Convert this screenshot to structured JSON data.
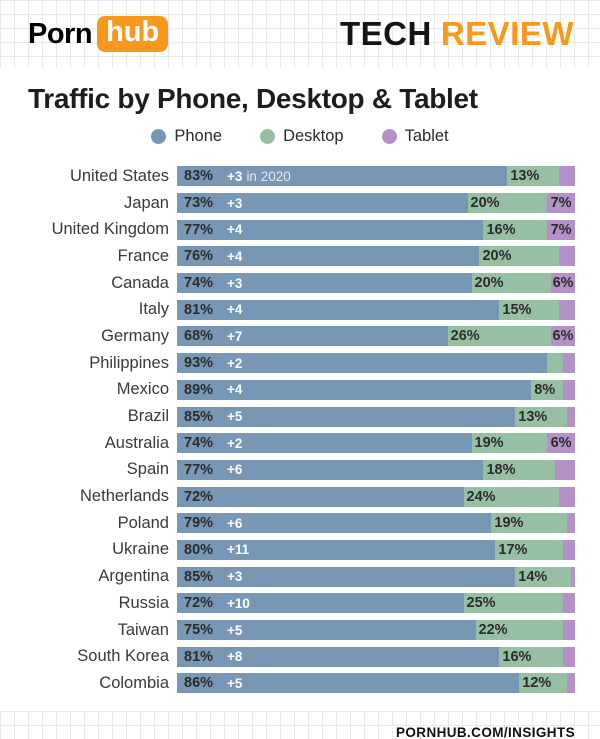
{
  "colors": {
    "phone": "#7897b5",
    "desktop": "#96bfa3",
    "tablet": "#b491c6",
    "orange": "#f8981d",
    "ink": "#1d1d1d"
  },
  "header": {
    "logo_porn": "Porn",
    "logo_hub": "hub",
    "brand_tech": "TECH",
    "brand_review": "REVIEW"
  },
  "title": "Traffic by Phone, Desktop & Tablet",
  "legend": [
    {
      "label": "Phone",
      "color": "#7897b5"
    },
    {
      "label": "Desktop",
      "color": "#96bfa3"
    },
    {
      "label": "Tablet",
      "color": "#b491c6"
    }
  ],
  "footer": {
    "text": "PORNHUB.COM/INSIGHTS"
  },
  "chart_data": {
    "type": "bar",
    "orientation": "horizontal",
    "stacked": true,
    "value_unit": "%",
    "title": "Traffic by Phone, Desktop & Tablet",
    "xlim": [
      0,
      100
    ],
    "legend_position": "top-center",
    "annotation_first_row": "+3 in 2020",
    "categories": [
      "United States",
      "Japan",
      "United Kingdom",
      "France",
      "Canada",
      "Italy",
      "Germany",
      "Philippines",
      "Mexico",
      "Brazil",
      "Australia",
      "Spain",
      "Netherlands",
      "Poland",
      "Ukraine",
      "Argentina",
      "Russia",
      "Taiwan",
      "South Korea",
      "Colombia"
    ],
    "series": [
      {
        "name": "Phone",
        "values": [
          83,
          73,
          77,
          76,
          74,
          81,
          68,
          93,
          89,
          85,
          74,
          77,
          72,
          79,
          80,
          85,
          72,
          75,
          81,
          86
        ]
      },
      {
        "name": "Desktop",
        "values": [
          13,
          20,
          16,
          20,
          20,
          15,
          26,
          4,
          8,
          13,
          19,
          18,
          24,
          19,
          17,
          14,
          25,
          22,
          16,
          12
        ]
      },
      {
        "name": "Tablet",
        "values": [
          4,
          7,
          7,
          4,
          6,
          4,
          6,
          3,
          3,
          2,
          6,
          5,
          4,
          2,
          3,
          1,
          3,
          3,
          3,
          2
        ]
      }
    ],
    "phone_change_in_2020": [
      "+3",
      "+3",
      "+4",
      "+4",
      "+3",
      "+4",
      "+7",
      "+2",
      "+4",
      "+5",
      "+2",
      "+6",
      null,
      "+6",
      "+11",
      "+3",
      "+10",
      "+5",
      "+8",
      "+5"
    ],
    "rows": [
      {
        "country": "United States",
        "phone": 83,
        "phone_label": "83%",
        "change": "+3",
        "change_suffix": "in 2020",
        "desktop": 13,
        "desktop_label": "13%",
        "tablet_label": ""
      },
      {
        "country": "Japan",
        "phone": 73,
        "phone_label": "73%",
        "change": "+3",
        "change_suffix": "",
        "desktop": 20,
        "desktop_label": "20%",
        "tablet_label": "7%"
      },
      {
        "country": "United Kingdom",
        "phone": 77,
        "phone_label": "77%",
        "change": "+4",
        "change_suffix": "",
        "desktop": 16,
        "desktop_label": "16%",
        "tablet_label": "7%"
      },
      {
        "country": "France",
        "phone": 76,
        "phone_label": "76%",
        "change": "+4",
        "change_suffix": "",
        "desktop": 20,
        "desktop_label": "20%",
        "tablet_label": ""
      },
      {
        "country": "Canada",
        "phone": 74,
        "phone_label": "74%",
        "change": "+3",
        "change_suffix": "",
        "desktop": 20,
        "desktop_label": "20%",
        "tablet_label": "6%"
      },
      {
        "country": "Italy",
        "phone": 81,
        "phone_label": "81%",
        "change": "+4",
        "change_suffix": "",
        "desktop": 15,
        "desktop_label": "15%",
        "tablet_label": ""
      },
      {
        "country": "Germany",
        "phone": 68,
        "phone_label": "68%",
        "change": "+7",
        "change_suffix": "",
        "desktop": 26,
        "desktop_label": "26%",
        "tablet_label": "6%"
      },
      {
        "country": "Philippines",
        "phone": 93,
        "phone_label": "93%",
        "change": "+2",
        "change_suffix": "",
        "desktop": 4,
        "desktop_label": "",
        "tablet_label": ""
      },
      {
        "country": "Mexico",
        "phone": 89,
        "phone_label": "89%",
        "change": "+4",
        "change_suffix": "",
        "desktop": 8,
        "desktop_label": "8%",
        "tablet_label": ""
      },
      {
        "country": "Brazil",
        "phone": 85,
        "phone_label": "85%",
        "change": "+5",
        "change_suffix": "",
        "desktop": 13,
        "desktop_label": "13%",
        "tablet_label": ""
      },
      {
        "country": "Australia",
        "phone": 74,
        "phone_label": "74%",
        "change": "+2",
        "change_suffix": "",
        "desktop": 19,
        "desktop_label": "19%",
        "tablet_label": "6%"
      },
      {
        "country": "Spain",
        "phone": 77,
        "phone_label": "77%",
        "change": "+6",
        "change_suffix": "",
        "desktop": 18,
        "desktop_label": "18%",
        "tablet_label": ""
      },
      {
        "country": "Netherlands",
        "phone": 72,
        "phone_label": "72%",
        "change": "",
        "change_suffix": "",
        "desktop": 24,
        "desktop_label": "24%",
        "tablet_label": ""
      },
      {
        "country": "Poland",
        "phone": 79,
        "phone_label": "79%",
        "change": "+6",
        "change_suffix": "",
        "desktop": 19,
        "desktop_label": "19%",
        "tablet_label": ""
      },
      {
        "country": "Ukraine",
        "phone": 80,
        "phone_label": "80%",
        "change": "+11",
        "change_suffix": "",
        "desktop": 17,
        "desktop_label": "17%",
        "tablet_label": ""
      },
      {
        "country": "Argentina",
        "phone": 85,
        "phone_label": "85%",
        "change": "+3",
        "change_suffix": "",
        "desktop": 14,
        "desktop_label": "14%",
        "tablet_label": ""
      },
      {
        "country": "Russia",
        "phone": 72,
        "phone_label": "72%",
        "change": "+10",
        "change_suffix": "",
        "desktop": 25,
        "desktop_label": "25%",
        "tablet_label": ""
      },
      {
        "country": "Taiwan",
        "phone": 75,
        "phone_label": "75%",
        "change": "+5",
        "change_suffix": "",
        "desktop": 22,
        "desktop_label": "22%",
        "tablet_label": ""
      },
      {
        "country": "South Korea",
        "phone": 81,
        "phone_label": "81%",
        "change": "+8",
        "change_suffix": "",
        "desktop": 16,
        "desktop_label": "16%",
        "tablet_label": ""
      },
      {
        "country": "Colombia",
        "phone": 86,
        "phone_label": "86%",
        "change": "+5",
        "change_suffix": "",
        "desktop": 12,
        "desktop_label": "12%",
        "tablet_label": ""
      }
    ]
  }
}
